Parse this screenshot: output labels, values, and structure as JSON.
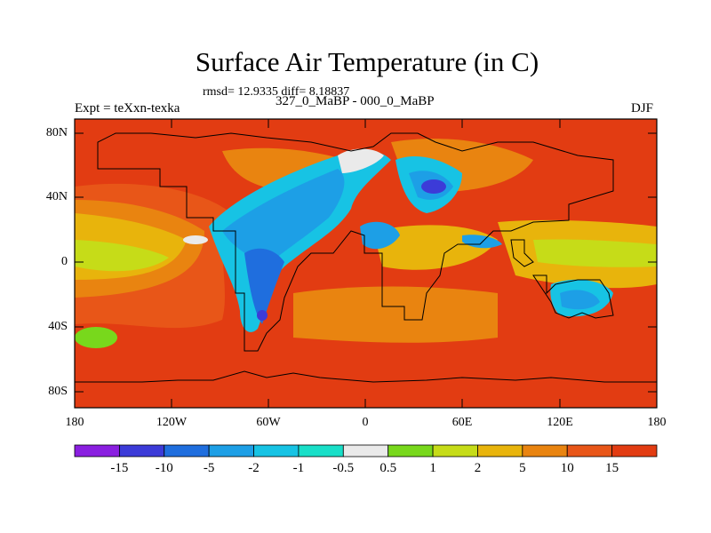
{
  "title": "Surface Air Temperature (in C)",
  "stats": "rmsd= 12.9335 diff= 8.18837",
  "experiment": "Expt = teXxn-texka",
  "comparison": "327_0_MaBP - 000_0_MaBP",
  "season": "DJF",
  "lat_labels": [
    "80N",
    "40N",
    "0",
    "40S",
    "80S"
  ],
  "lon_labels": [
    "180",
    "120W",
    "60W",
    "0",
    "60E",
    "120E",
    "180"
  ],
  "colorbar": {
    "labels": [
      "-15",
      "-10",
      "-5",
      "-2",
      "-1",
      "-0.5",
      "0.5",
      "1",
      "2",
      "5",
      "10",
      "15"
    ],
    "colors": [
      "#8a1fe0",
      "#3c3bd8",
      "#1f6ede",
      "#1d9fe6",
      "#17c3e4",
      "#19dfc8",
      "#eaeaea",
      "#78d81c",
      "#c6dc18",
      "#e8b40c",
      "#e98410",
      "#e85618",
      "#e23c12"
    ]
  }
}
